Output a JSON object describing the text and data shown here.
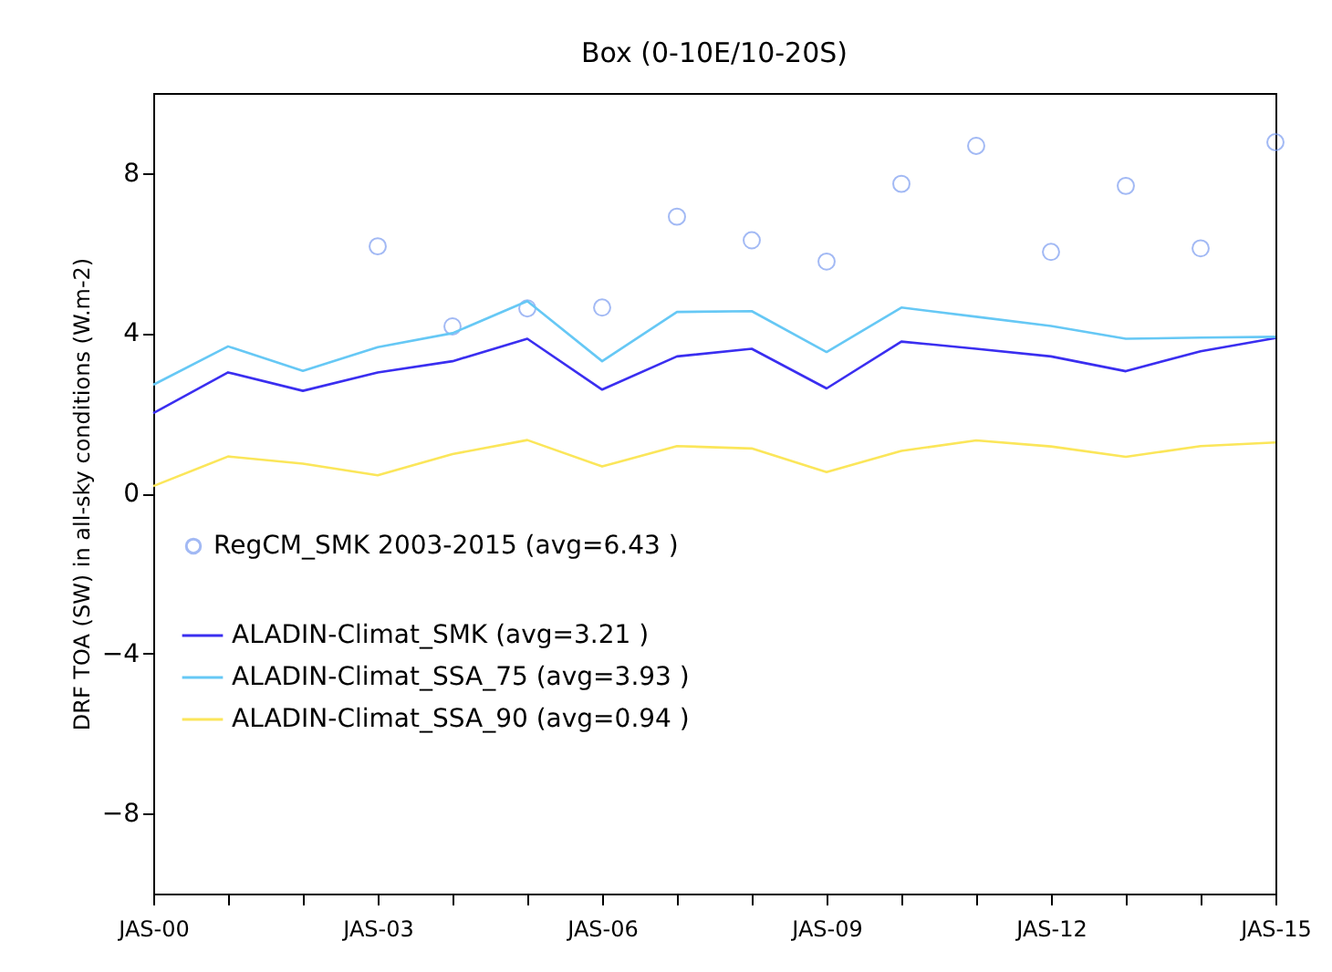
{
  "chart_data": {
    "type": "line",
    "title": "Box (0-10E/10-20S)",
    "ylabel": "DRF TOA (SW) in all-sky conditions (W.m-2)",
    "categories": [
      "JAS-00",
      null,
      null,
      "JAS-03",
      null,
      null,
      "JAS-06",
      null,
      null,
      "JAS-09",
      null,
      null,
      "JAS-12",
      null,
      null,
      "JAS-15"
    ],
    "ylim": [
      -10,
      10
    ],
    "yticks": [
      -8,
      -4,
      0,
      4,
      8
    ],
    "grid": false,
    "legend": "left",
    "series": [
      {
        "name": "RegCM_SMK 2003-2015 (avg=6.43 )",
        "type": "scatter",
        "marker": "circle",
        "color": "#7b9cf0",
        "values": [
          null,
          null,
          null,
          6.17,
          4.17,
          4.62,
          4.64,
          6.91,
          6.32,
          5.79,
          7.73,
          8.68,
          6.03,
          7.68,
          6.12,
          8.77
        ]
      },
      {
        "name": "ALADIN-Climat_SMK (avg=3.21 )",
        "color": "#3a2ef0",
        "values": [
          2.0,
          3.02,
          2.56,
          3.02,
          3.3,
          3.86,
          2.59,
          3.42,
          3.61,
          2.62,
          3.79,
          3.61,
          3.42,
          3.05,
          3.55,
          3.88
        ]
      },
      {
        "name": "ALADIN-Climat_SSA_75 (avg=3.93 )",
        "color": "#66c8f5",
        "values": [
          2.71,
          3.67,
          3.06,
          3.65,
          4.0,
          4.8,
          3.3,
          4.53,
          4.55,
          3.53,
          4.64,
          4.41,
          4.18,
          3.86,
          3.89,
          3.91
        ]
      },
      {
        "name": "ALADIN-Climat_SSA_90 (avg=0.94 )",
        "color": "#fbe65a",
        "values": [
          0.18,
          0.92,
          0.74,
          0.45,
          0.98,
          1.33,
          0.67,
          1.18,
          1.12,
          0.53,
          1.06,
          1.32,
          1.17,
          0.91,
          1.18,
          1.27
        ]
      }
    ]
  }
}
